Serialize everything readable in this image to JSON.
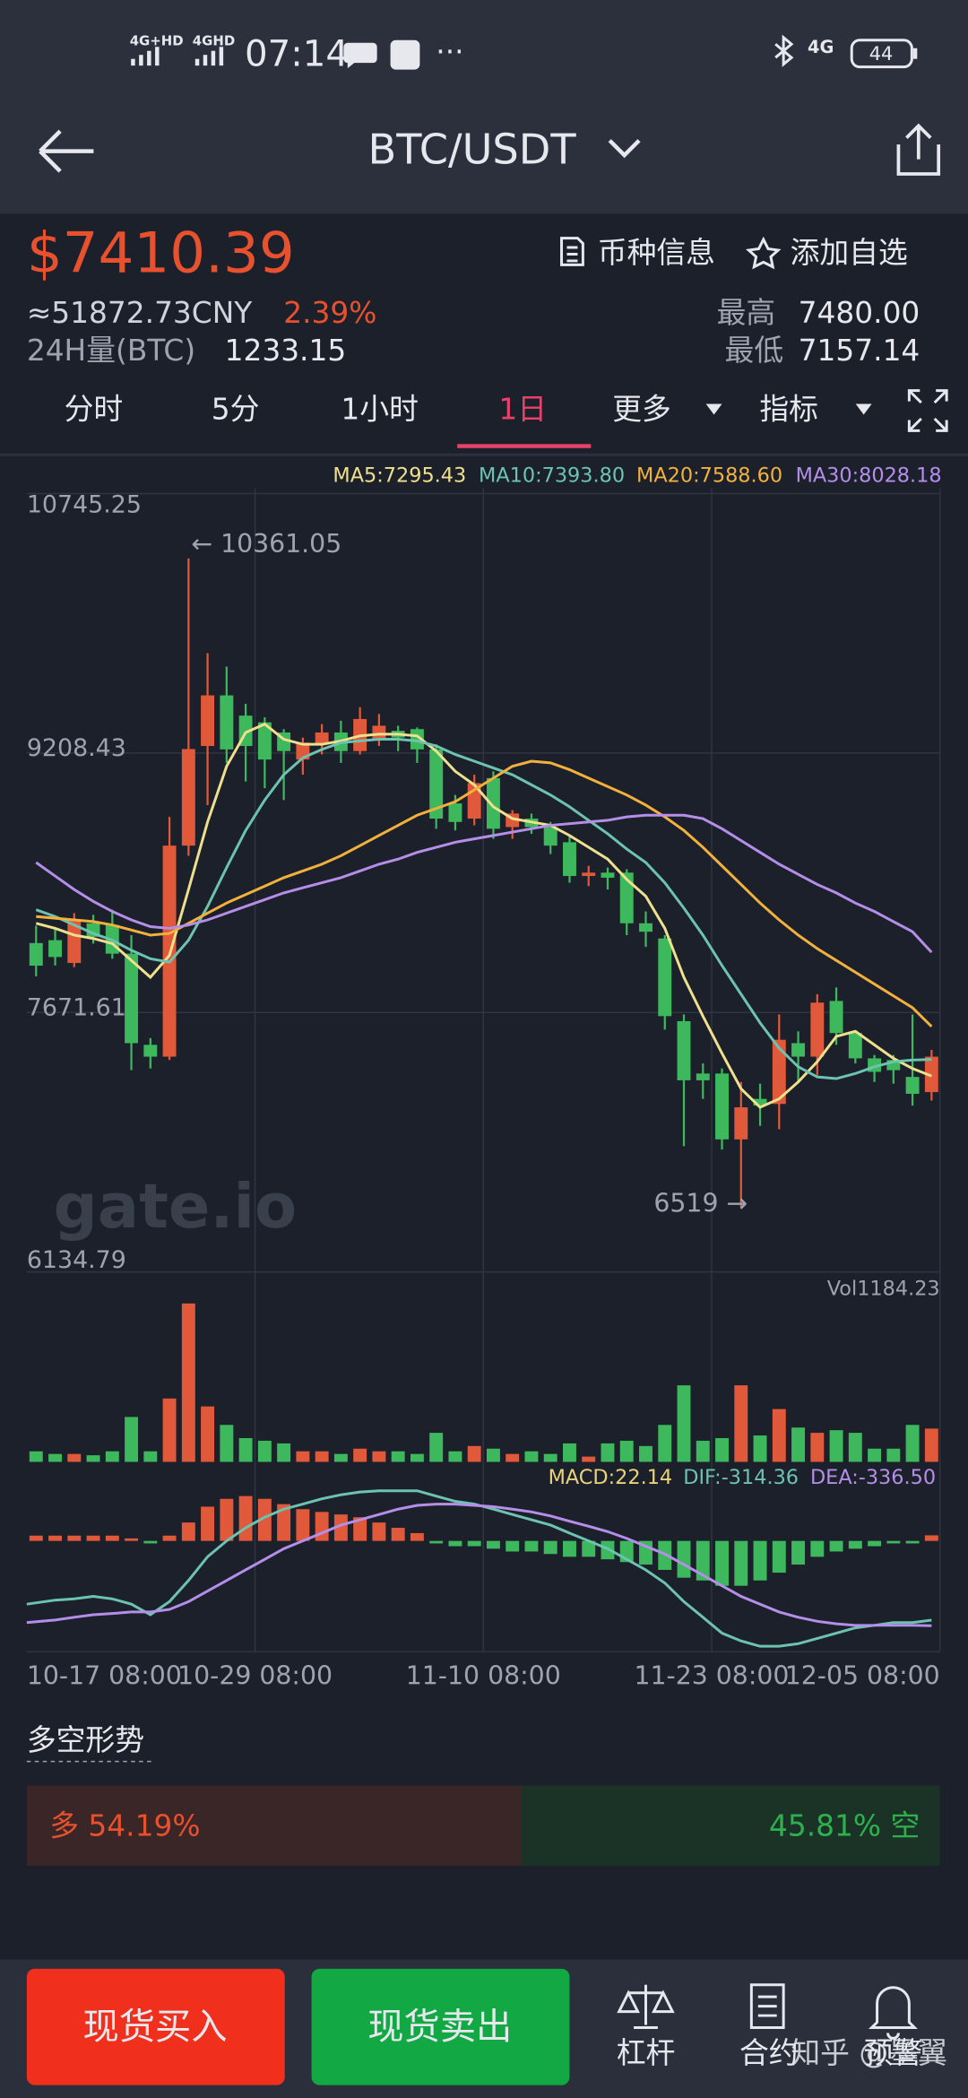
{
  "status_bar": {
    "signal1": "4G+HD",
    "signal2": "4GHD",
    "time": "07:14",
    "more": "···",
    "network": "4G",
    "battery": "44"
  },
  "header": {
    "title": "BTC/USDT"
  },
  "ticker": {
    "price": "$7410.39",
    "cny": "≈51872.73CNY",
    "change": "2.39%",
    "volume_label": "24H量(BTC)",
    "volume": "1233.15",
    "high_label": "最高",
    "high": "7480.00",
    "low_label": "最低",
    "low": "7157.14",
    "info": "币种信息",
    "watch": "添加自选"
  },
  "tabs": [
    "分时",
    "5分",
    "1小时",
    "1日",
    "更多",
    "指标"
  ],
  "chart_data": [
    {
      "type": "candlestick",
      "watermark": "gate.io",
      "x_labels": [
        "10-17 08:00",
        "10-29 08:00",
        "11-10 08:00",
        "11-23 08:00",
        "12-05 08:00"
      ],
      "up_color": "#e0593a",
      "down_color": "#3db85c",
      "ylim": [
        6134.79,
        10745.25
      ],
      "yticks": [
        10745.25,
        9208.43,
        7671.61,
        6134.79
      ],
      "grid": true,
      "open": [
        8083,
        8100,
        7965,
        8200,
        8190,
        8020,
        7480,
        7410,
        8660,
        9250,
        9550,
        9430,
        9390,
        9330,
        9170,
        9260,
        9330,
        9220,
        9290,
        9340,
        9350,
        9230,
        8910,
        8820,
        9060,
        8770,
        8820,
        8770,
        8680,
        8480,
        8500,
        8500,
        8200,
        8110,
        7620,
        7310,
        7310,
        6920,
        7160,
        7130,
        7490,
        7410,
        7740,
        7550,
        7400,
        7390,
        7290,
        7200
      ],
      "high": [
        8186,
        8170,
        8260,
        8250,
        8280,
        8130,
        7520,
        8830,
        10361.05,
        9800,
        9720,
        9500,
        9420,
        9350,
        9300,
        9380,
        9400,
        9480,
        9440,
        9370,
        9360,
        9260,
        8960,
        9080,
        9100,
        8870,
        8850,
        8800,
        8720,
        8540,
        8530,
        8520,
        8270,
        8130,
        7660,
        7370,
        7340,
        7260,
        7250,
        7660,
        7560,
        7780,
        7820,
        7560,
        7420,
        7420,
        7660,
        7450
      ],
      "low": [
        7886,
        7950,
        7940,
        8080,
        7990,
        7330,
        7340,
        7390,
        8600,
        8900,
        9150,
        9040,
        9000,
        8930,
        9080,
        9200,
        9150,
        9200,
        9250,
        9220,
        9150,
        8760,
        8750,
        8780,
        8700,
        8700,
        8730,
        8610,
        8440,
        8420,
        8400,
        8130,
        8060,
        7570,
        6880,
        7160,
        6860,
        6519,
        7000,
        6980,
        7260,
        7300,
        7480,
        7370,
        7260,
        7250,
        7120,
        7150
      ],
      "close": [
        7949,
        8000,
        8218,
        8120,
        8020,
        7490,
        7410,
        8660,
        9232,
        9550,
        9230,
        9250,
        9170,
        9220,
        9270,
        9330,
        9220,
        9410,
        9370,
        9300,
        9230,
        8820,
        8800,
        9030,
        8760,
        8850,
        8770,
        8660,
        8480,
        8500,
        8470,
        8200,
        8150,
        7650,
        7270,
        7270,
        6920,
        7110,
        7120,
        7510,
        7410,
        7730,
        7550,
        7400,
        7320,
        7330,
        7190,
        7410
      ],
      "series": [
        {
          "name": "MA5:7295.43",
          "color": "#efe08e",
          "values": [
            8200,
            8170,
            8130,
            8110,
            8080,
            7980,
            7880,
            8010,
            8400,
            8800,
            9130,
            9330,
            9380,
            9290,
            9260,
            9260,
            9280,
            9310,
            9320,
            9320,
            9310,
            9220,
            9100,
            9020,
            8890,
            8820,
            8800,
            8780,
            8720,
            8650,
            8580,
            8460,
            8360,
            8170,
            7880,
            7650,
            7430,
            7220,
            7110,
            7160,
            7260,
            7380,
            7530,
            7560,
            7480,
            7400,
            7340,
            7295.43
          ]
        },
        {
          "name": "MA10:7393.80",
          "color": "#6cc3b0",
          "values": [
            8280,
            8240,
            8190,
            8140,
            8100,
            8040,
            7990,
            7970,
            8100,
            8300,
            8530,
            8750,
            8930,
            9080,
            9180,
            9230,
            9270,
            9280,
            9290,
            9290,
            9280,
            9250,
            9200,
            9160,
            9120,
            9080,
            9020,
            8960,
            8890,
            8810,
            8730,
            8640,
            8560,
            8440,
            8290,
            8130,
            7950,
            7780,
            7610,
            7460,
            7350,
            7290,
            7280,
            7310,
            7350,
            7380,
            7390,
            7393.8
          ]
        },
        {
          "name": "MA20:7588.60",
          "color": "#f2b13c",
          "values": [
            8240,
            8230,
            8220,
            8210,
            8190,
            8160,
            8130,
            8140,
            8200,
            8260,
            8320,
            8370,
            8420,
            8470,
            8510,
            8550,
            8600,
            8660,
            8720,
            8780,
            8840,
            8880,
            8920,
            8990,
            9060,
            9130,
            9160,
            9150,
            9110,
            9060,
            9010,
            8960,
            8900,
            8830,
            8750,
            8650,
            8540,
            8430,
            8320,
            8220,
            8130,
            8050,
            7980,
            7910,
            7840,
            7770,
            7700,
            7588.6
          ]
        },
        {
          "name": "MA30:8028.18",
          "color": "#b48ee8",
          "values": [
            8560,
            8480,
            8400,
            8330,
            8270,
            8220,
            8180,
            8170,
            8190,
            8220,
            8260,
            8300,
            8340,
            8380,
            8410,
            8440,
            8470,
            8510,
            8550,
            8580,
            8620,
            8650,
            8680,
            8700,
            8720,
            8740,
            8760,
            8780,
            8790,
            8800,
            8810,
            8830,
            8840,
            8840,
            8840,
            8820,
            8760,
            8690,
            8620,
            8550,
            8490,
            8430,
            8380,
            8320,
            8270,
            8210,
            8150,
            8028.18
          ]
        }
      ]
    },
    {
      "type": "bar",
      "name": "Vol1184.23",
      "ylim": [
        0,
        6000
      ],
      "values": [
        376,
        282,
        282,
        235,
        376,
        1598,
        376,
        2256,
        5640,
        1974,
        1316,
        846,
        752,
        658,
        376,
        376,
        282,
        470,
        376,
        376,
        282,
        1034,
        376,
        564,
        470,
        282,
        376,
        282,
        658,
        188,
        658,
        752,
        564,
        1316,
        2726,
        752,
        846,
        2726,
        940,
        1880,
        1222,
        1034,
        1128,
        1034,
        470,
        470,
        1316,
        1184.23
      ]
    },
    {
      "type": "macd",
      "ylim": [
        -440,
        250
      ],
      "histogram": {
        "name": "MACD:22.14",
        "color": "#e8d27a",
        "values": [
          21,
          21,
          21,
          21,
          21,
          10,
          -10,
          21,
          73,
          136,
          167,
          178,
          167,
          146,
          126,
          115,
          105,
          94,
          73,
          52,
          31,
          -10,
          -21,
          -21,
          -31,
          -42,
          -42,
          -52,
          -63,
          -63,
          -73,
          -84,
          -94,
          -115,
          -146,
          -157,
          -178,
          -178,
          -157,
          -126,
          -94,
          -63,
          -42,
          -31,
          -21,
          -10,
          -10,
          22.14
        ]
      },
      "series": [
        {
          "name": "DIF:-314.36",
          "color": "#6cc3b0",
          "values": [
            -251,
            -235,
            -230,
            -220,
            -230,
            -251,
            -293,
            -241,
            -157,
            -63,
            0,
            52,
            94,
            126,
            146,
            167,
            183,
            194,
            199,
            199,
            199,
            178,
            157,
            146,
            126,
            105,
            84,
            63,
            31,
            0,
            -31,
            -73,
            -115,
            -167,
            -241,
            -303,
            -366,
            -397,
            -418,
            -418,
            -408,
            -387,
            -366,
            -345,
            -335,
            -324,
            -324,
            -314.36
          ]
        },
        {
          "name": "DEA:-336.50",
          "color": "#b48ee8",
          "values": [
            -324,
            -314,
            -303,
            -293,
            -288,
            -282,
            -282,
            -272,
            -241,
            -199,
            -157,
            -115,
            -73,
            -31,
            0,
            31,
            63,
            84,
            105,
            126,
            141,
            146,
            146,
            141,
            136,
            126,
            115,
            99,
            78,
            58,
            37,
            10,
            -21,
            -52,
            -94,
            -136,
            -178,
            -220,
            -251,
            -282,
            -303,
            -319,
            -329,
            -335,
            -335,
            -335,
            -335,
            -336.5
          ]
        }
      ]
    }
  ],
  "sentiment": {
    "title": "多空形势",
    "long_label": "多",
    "short_label": "空",
    "values": [
      54.19,
      45.81
    ],
    "value_labels": [
      "54.19%",
      "45.81%"
    ],
    "colors": [
      "#3a2527",
      "#1b3327"
    ]
  },
  "actions": {
    "buy": "现货买入",
    "sell": "现货卖出",
    "leverage": "杠杆",
    "contract": "合约",
    "alert": "预警",
    "watermark": "知乎 @墨翼"
  }
}
